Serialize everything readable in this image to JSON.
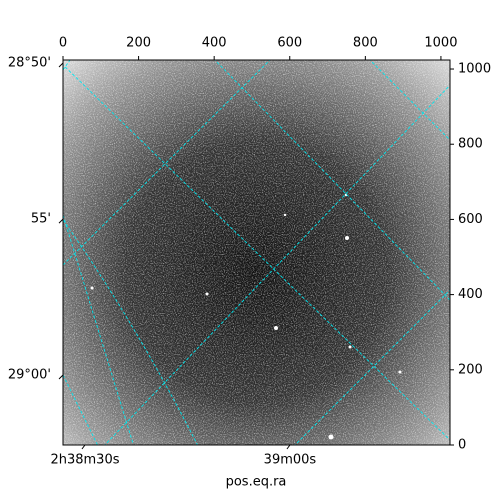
{
  "chart_data": {
    "type": "image",
    "xlabel": "pos.eq.ra",
    "xlim": [
      0,
      1024
    ],
    "xticks": [
      0,
      200,
      400,
      600,
      800,
      1000
    ],
    "ylim": [
      0,
      1024
    ],
    "yticks": [
      0,
      200,
      400,
      600,
      800,
      1000
    ],
    "declim": [
      28.8317,
      29.0374
    ],
    "dec_ticks": [
      {
        "value": 28.8333,
        "label": "28°50'"
      },
      {
        "value": 28.9167,
        "label": "55'"
      },
      {
        "value": 29.0,
        "label": "29°00'"
      }
    ],
    "ralim": [
      39.6116,
      39.8476
    ],
    "ra_ticks": [
      {
        "value": 39.625,
        "label": "2h38m30s"
      },
      {
        "value": 39.75,
        "label": "39m00s"
      }
    ],
    "grid": true,
    "grid_color": "#00e5ee"
  }
}
